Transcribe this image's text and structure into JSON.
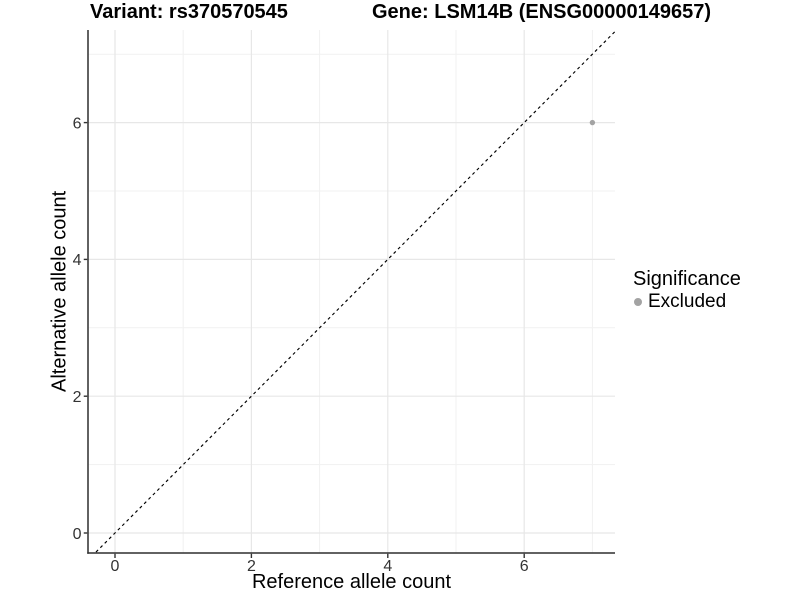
{
  "chart_data": {
    "type": "scatter",
    "title_left": "Variant: rs370570545",
    "title_right": "Gene: LSM14B (ENSG00000149657)",
    "xlabel": "Reference allele count",
    "ylabel": "Alternative allele count",
    "xlim": [
      -0.4,
      7.35
    ],
    "ylim": [
      -0.3,
      7.35
    ],
    "x_ticks": [
      0,
      2,
      4,
      6
    ],
    "y_ticks": [
      0,
      2,
      4,
      6
    ],
    "x_minor_ticks": [
      1,
      3,
      5,
      7
    ],
    "y_minor_ticks": [
      1,
      3,
      5,
      7
    ],
    "grid": "major+minor",
    "series": [
      {
        "name": "Excluded",
        "color": "#a3a3a3",
        "points": [
          {
            "x": 7,
            "y": 6
          }
        ]
      }
    ],
    "reference_line": {
      "type": "identity",
      "equation": "y = x",
      "style": "dashed",
      "color": "#000000"
    },
    "legend": {
      "title": "Significance",
      "position": "right",
      "items": [
        {
          "label": "Excluded",
          "color": "#a3a3a3"
        }
      ]
    },
    "colors": {
      "background": "#ffffff",
      "axis_line": "#2f2f2f",
      "tick_mark": "#333333",
      "tick_label": "#333333",
      "grid_major": "#e7e7e7",
      "grid_minor": "#f1f1f1",
      "point": "#a3a3a3",
      "identity_line": "#000000",
      "text": "#000000"
    }
  }
}
